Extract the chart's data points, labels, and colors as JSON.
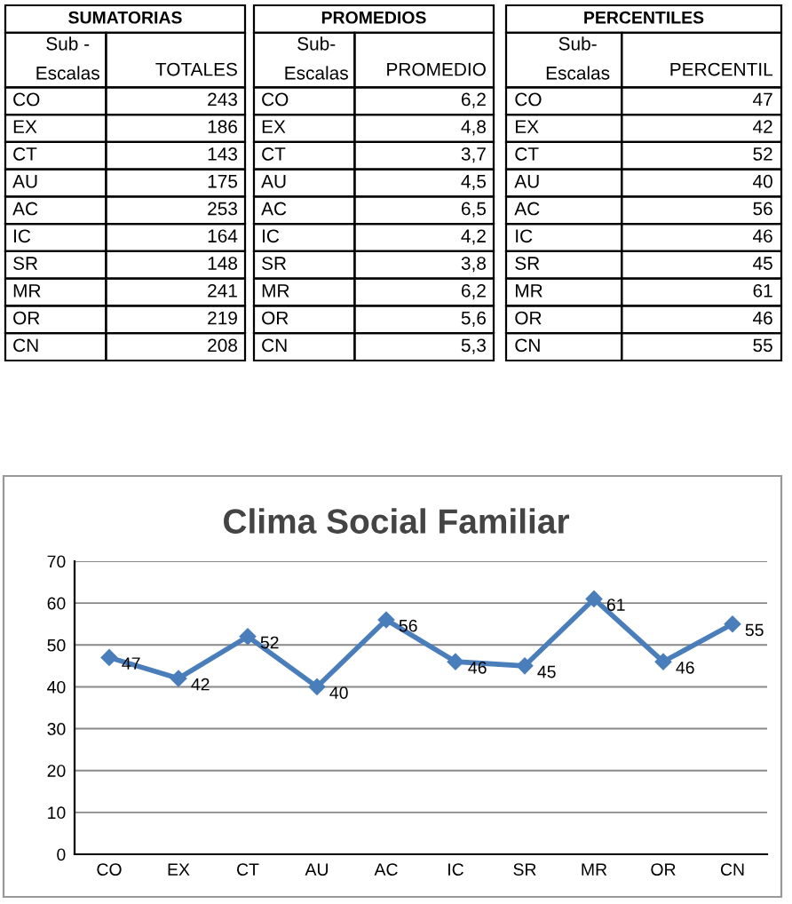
{
  "chart_data": [
    {
      "type": "other",
      "title": "SUMATORIAS",
      "annotations": [
        "Sub -\nEscalas",
        "TOTALES"
      ],
      "categories": [
        "CO",
        "EX",
        "CT",
        "AU",
        "AC",
        "IC",
        "SR",
        "MR",
        "OR",
        "CN"
      ],
      "values": [
        243,
        186,
        143,
        175,
        253,
        164,
        148,
        241,
        219,
        208
      ],
      "data_labels": true
    },
    {
      "type": "other",
      "title": "PROMEDIOS",
      "annotations": [
        "Sub-\nEscalas",
        "PROMEDIO"
      ],
      "categories": [
        "CO",
        "EX",
        "CT",
        "AU",
        "AC",
        "IC",
        "SR",
        "MR",
        "OR",
        "CN"
      ],
      "values": [
        6.2,
        4.8,
        3.7,
        4.5,
        6.5,
        4.2,
        3.8,
        6.2,
        5.6,
        5.3
      ],
      "value_labels": [
        "6,2",
        "4,8",
        "3,7",
        "4,5",
        "6,5",
        "4,2",
        "3,8",
        "6,2",
        "5,6",
        "5,3"
      ]
    },
    {
      "type": "other",
      "title": "PERCENTILES",
      "annotations": [
        "Sub-\nEscalas",
        "PERCENTIL"
      ],
      "categories": [
        "CO",
        "EX",
        "CT",
        "AU",
        "AC",
        "IC",
        "SR",
        "MR",
        "OR",
        "CN"
      ],
      "values": [
        47,
        42,
        52,
        40,
        56,
        46,
        45,
        61,
        46,
        55
      ],
      "data_labels": true
    },
    {
      "type": "line",
      "title": "Clima Social Familiar",
      "categories": [
        "CO",
        "EX",
        "CT",
        "AU",
        "AC",
        "IC",
        "SR",
        "MR",
        "OR",
        "CN"
      ],
      "series": [
        {
          "color": "#4a7ebb",
          "values": [
            47,
            42,
            52,
            40,
            56,
            46,
            45,
            61,
            46,
            55
          ]
        }
      ],
      "ylim": [
        0,
        70
      ],
      "yticks": [
        0,
        10,
        20,
        30,
        40,
        50,
        60,
        70
      ],
      "grid": "y",
      "marker": "diamond",
      "data_labels": true
    }
  ]
}
